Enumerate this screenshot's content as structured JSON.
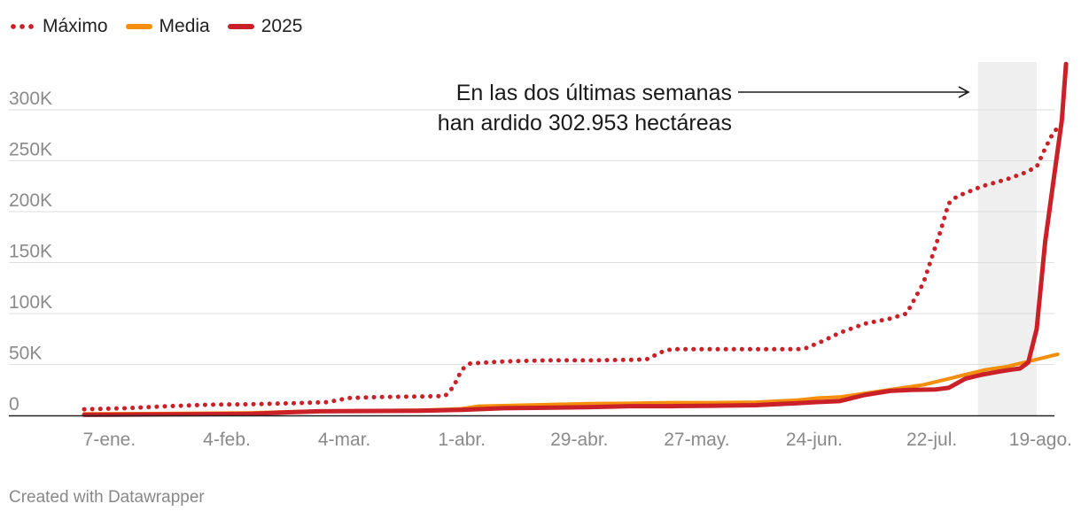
{
  "chart_data": {
    "type": "line",
    "title": "",
    "xlabel": "",
    "ylabel": "",
    "ylim": [
      0,
      340000
    ],
    "yticks": [
      {
        "value": 0,
        "label": "0"
      },
      {
        "value": 50000,
        "label": "50K"
      },
      {
        "value": 100000,
        "label": "100K"
      },
      {
        "value": 150000,
        "label": "150K"
      },
      {
        "value": 200000,
        "label": "200K"
      },
      {
        "value": 250000,
        "label": "250K"
      },
      {
        "value": 300000,
        "label": "300K"
      }
    ],
    "xrange": [
      0,
      227
    ],
    "xticks": [
      {
        "day": 6,
        "label": "7-ene."
      },
      {
        "day": 34,
        "label": "4-feb."
      },
      {
        "day": 62,
        "label": "4-mar."
      },
      {
        "day": 90,
        "label": "1-abr."
      },
      {
        "day": 118,
        "label": "29-abr."
      },
      {
        "day": 146,
        "label": "27-may."
      },
      {
        "day": 174,
        "label": "24-jun."
      },
      {
        "day": 202,
        "label": "22-jul."
      },
      {
        "day": 230,
        "label": "19-ago."
      }
    ],
    "highlight": {
      "from_day": 213,
      "to_day": 227
    },
    "series": [
      {
        "name": "Máximo",
        "color": "#c92127",
        "style": "dotted",
        "points": [
          [
            0,
            6000
          ],
          [
            10,
            7000
          ],
          [
            20,
            9000
          ],
          [
            30,
            10500
          ],
          [
            40,
            11000
          ],
          [
            50,
            12000
          ],
          [
            58,
            13000
          ],
          [
            63,
            17000
          ],
          [
            70,
            18000
          ],
          [
            80,
            18500
          ],
          [
            86,
            19000
          ],
          [
            88,
            28000
          ],
          [
            90,
            45000
          ],
          [
            92,
            51000
          ],
          [
            100,
            53000
          ],
          [
            110,
            54000
          ],
          [
            120,
            54000
          ],
          [
            130,
            54500
          ],
          [
            134,
            55000
          ],
          [
            138,
            63000
          ],
          [
            140,
            65000
          ],
          [
            150,
            65000
          ],
          [
            160,
            65000
          ],
          [
            170,
            65000
          ],
          [
            172,
            66000
          ],
          [
            176,
            73000
          ],
          [
            180,
            81000
          ],
          [
            186,
            90000
          ],
          [
            192,
            95000
          ],
          [
            196,
            100000
          ],
          [
            200,
            130000
          ],
          [
            204,
            180000
          ],
          [
            206,
            208000
          ],
          [
            208,
            215000
          ],
          [
            214,
            225000
          ],
          [
            220,
            232000
          ],
          [
            224,
            238000
          ],
          [
            227,
            244000
          ],
          [
            229,
            262000
          ],
          [
            231,
            278000
          ],
          [
            232,
            282000
          ]
        ]
      },
      {
        "name": "Media",
        "color": "#f58e0a",
        "style": "solid",
        "points": [
          [
            0,
            1500
          ],
          [
            20,
            1800
          ],
          [
            40,
            2500
          ],
          [
            48,
            3500
          ],
          [
            56,
            4200
          ],
          [
            80,
            5000
          ],
          [
            90,
            6500
          ],
          [
            94,
            9000
          ],
          [
            110,
            10500
          ],
          [
            120,
            11500
          ],
          [
            130,
            11800
          ],
          [
            140,
            12500
          ],
          [
            150,
            12500
          ],
          [
            160,
            13000
          ],
          [
            170,
            15000
          ],
          [
            175,
            17000
          ],
          [
            180,
            18000
          ],
          [
            190,
            24000
          ],
          [
            200,
            30000
          ],
          [
            205,
            35000
          ],
          [
            210,
            40000
          ],
          [
            215,
            45000
          ],
          [
            220,
            48000
          ],
          [
            227,
            55000
          ],
          [
            232,
            60000
          ]
        ]
      },
      {
        "name": "2025",
        "color": "#c92127",
        "style": "solid",
        "points": [
          [
            0,
            500
          ],
          [
            20,
            1000
          ],
          [
            40,
            1500
          ],
          [
            48,
            3000
          ],
          [
            56,
            4000
          ],
          [
            80,
            4500
          ],
          [
            90,
            5500
          ],
          [
            100,
            7000
          ],
          [
            110,
            7500
          ],
          [
            120,
            8000
          ],
          [
            130,
            9000
          ],
          [
            140,
            9000
          ],
          [
            150,
            9500
          ],
          [
            160,
            10000
          ],
          [
            170,
            12000
          ],
          [
            174,
            13000
          ],
          [
            180,
            14000
          ],
          [
            186,
            20000
          ],
          [
            192,
            24000
          ],
          [
            197,
            25000
          ],
          [
            203,
            25500
          ],
          [
            206,
            27000
          ],
          [
            210,
            36000
          ],
          [
            214,
            40000
          ],
          [
            218,
            43000
          ],
          [
            221,
            45000
          ],
          [
            223,
            46000
          ],
          [
            225,
            52000
          ],
          [
            227,
            85000
          ],
          [
            229,
            170000
          ],
          [
            231,
            230000
          ],
          [
            233,
            290000
          ],
          [
            234,
            345000
          ]
        ]
      }
    ],
    "annotation": {
      "lines": [
        "En las dos últimas semanas",
        "han ardido 302.953 hectáreas"
      ]
    }
  },
  "footer": {
    "credit": "Created with Datawrapper"
  }
}
